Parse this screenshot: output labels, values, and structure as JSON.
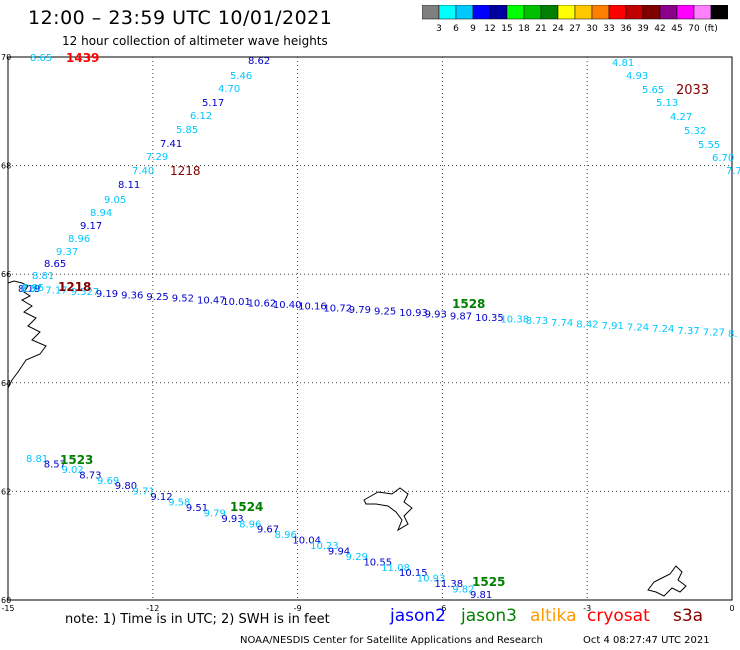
{
  "header": {
    "title": "12:00 – 23:59 UTC 10/01/2021",
    "subtitle": "12 hour collection of altimeter wave heights"
  },
  "color_scale": {
    "colors": [
      "#7f7f7f",
      "#00ffff",
      "#00c8ff",
      "#0000ff",
      "#0000a0",
      "#00ff00",
      "#00c000",
      "#008000",
      "#ffff00",
      "#ffc800",
      "#ff8000",
      "#ff0000",
      "#c00000",
      "#800000",
      "#8b008b",
      "#ff00ff",
      "#ff80ff",
      "#000000"
    ],
    "labels": [
      "3",
      "6",
      "9",
      "12",
      "15",
      "18",
      "21",
      "24",
      "27",
      "30",
      "33",
      "36",
      "39",
      "42",
      "45",
      "70",
      "(ft)"
    ]
  },
  "map": {
    "lat_labels": [
      "70",
      "68",
      "66",
      "64",
      "62",
      "60"
    ],
    "lon_labels": [
      "-15",
      "-12",
      "-9",
      "-6",
      "-3",
      "0"
    ],
    "track_a_colors": {
      "cyan": "#00c8ff",
      "blue": "#0000cc"
    },
    "tracks": [
      {
        "values": [
          "8.65",
          "8.62",
          "5.46",
          "4.70",
          "5.17",
          "6.12",
          "5.85",
          "7.41",
          "7.29",
          "7.40",
          "8.11",
          "9.05",
          "8.94",
          "9.17",
          "8.96",
          "9.37",
          "8.65",
          "8.81",
          "7.95",
          "8.19"
        ],
        "time": "1218",
        "time_color": "#800000",
        "extra": [
          {
            "t": "1439",
            "c": "#ff0000"
          }
        ]
      },
      {
        "values": [
          "4.81",
          "4.93",
          "5.65",
          "5.13",
          "4.27",
          "5.32",
          "5.55",
          "6.70",
          "7.7"
        ],
        "time": "2033",
        "time_color": "#800000"
      },
      {
        "values": [
          "8.37",
          "7.17",
          "9.527",
          "9.19",
          "9.36",
          "9.25",
          "9.52",
          "10.47",
          "10.01",
          "10.62",
          "10.40",
          "10.16",
          "10.72",
          "9.79",
          "9.25",
          "10.93",
          "9.93",
          "9.87",
          "10.35",
          "10.38",
          "8.73",
          "7.74",
          "8.42",
          "7.91",
          "7.24",
          "7.24",
          "7.37",
          "7.27",
          "8."
        ],
        "time": "1528",
        "time_color": "#008000",
        "extra": [
          {
            "t": "1218",
            "c": "#800000"
          }
        ]
      },
      {
        "values": [
          "8.81",
          "8.57",
          "9.02",
          "8.73",
          "9.69",
          "9.80",
          "9.71",
          "9.12",
          "9.58",
          "9.51",
          "9.79",
          "9.93",
          "8.96",
          "9.67",
          "8.96",
          "10.04",
          "10.23",
          "9.94",
          "9.29",
          "10.55",
          "11.08",
          "10.15",
          "10.93",
          "11.38",
          "9.82",
          "9.81"
        ],
        "time": "1523",
        "time2": "1524",
        "time3": "1525",
        "time_color": "#008000"
      }
    ]
  },
  "legend": {
    "note": "note:  1) Time is in UTC;  2) SWH is in feet",
    "satellites": [
      {
        "name": "jason2",
        "color": "#0000ff"
      },
      {
        "name": "jason3",
        "color": "#008000"
      },
      {
        "name": "altika",
        "color": "#ff9900"
      },
      {
        "name": "cryosat",
        "color": "#ff0000"
      },
      {
        "name": "s3a",
        "color": "#800000"
      }
    ]
  },
  "footer": {
    "credit": "NOAA/NESDIS Center for Satellite Applications and Research",
    "timestamp": "Oct  4 08:27:47 UTC 2021"
  }
}
